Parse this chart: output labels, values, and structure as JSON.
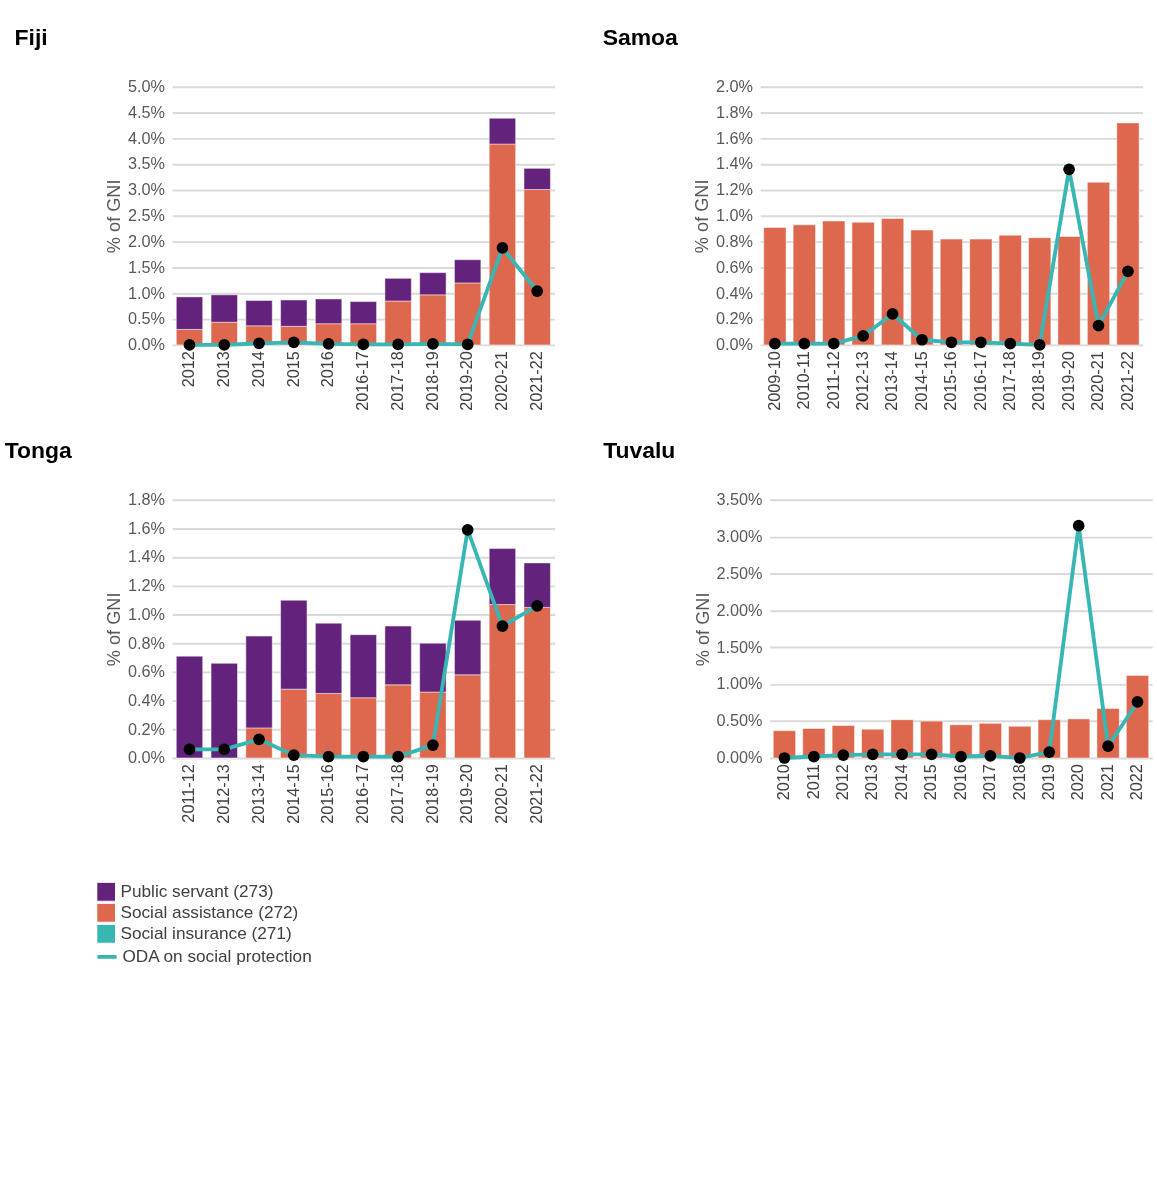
{
  "chart_data": [
    {
      "type": "bar",
      "title": "Fiji",
      "ylabel": "% of GNI",
      "stacked": true,
      "grid": "y",
      "legend": false,
      "categories": [
        "2012",
        "2013",
        "2014",
        "2015",
        "2016",
        "2016-17",
        "2017-18",
        "2018-19",
        "2019-20",
        "2020-21",
        "2021-22"
      ],
      "ylim": [
        0,
        5.0
      ],
      "yticks": [
        {
          "value": 0,
          "label": "0.0%"
        },
        {
          "value": 0.5,
          "label": "0.5%"
        },
        {
          "value": 1.0,
          "label": "1.0%"
        },
        {
          "value": 1.5,
          "label": "1.5%"
        },
        {
          "value": 2.0,
          "label": "2.0%"
        },
        {
          "value": 2.5,
          "label": "2.5%"
        },
        {
          "value": 3.0,
          "label": "3.0%"
        },
        {
          "value": 3.5,
          "label": "3.5%"
        },
        {
          "value": 4.0,
          "label": "4.0%"
        },
        {
          "value": 4.5,
          "label": "4.5%"
        },
        {
          "value": 5.0,
          "label": "5.0%"
        }
      ],
      "series": [
        {
          "color": "#dd684e",
          "values": [
            0.3,
            0.44,
            0.37,
            0.36,
            0.41,
            0.41,
            0.85,
            0.97,
            1.2,
            3.89,
            3.01
          ]
        },
        {
          "color": "#63237d",
          "values": [
            0.63,
            0.53,
            0.49,
            0.51,
            0.48,
            0.43,
            0.44,
            0.43,
            0.45,
            0.5,
            0.41
          ]
        },
        {
          "type": "line",
          "color": "#38b6b4",
          "marker": "circle",
          "values": [
            0.0,
            0.0,
            0.03,
            0.05,
            0.02,
            0.01,
            0.01,
            0.02,
            0.01,
            1.88,
            1.04
          ]
        }
      ]
    },
    {
      "type": "bar",
      "title": "Samoa",
      "ylabel": "% of GNI",
      "stacked": true,
      "grid": "y",
      "legend": false,
      "categories": [
        "2009-10",
        "2010-11",
        "2011-12",
        "2012-13",
        "2013-14",
        "2014-15",
        "2015-16",
        "2016-17",
        "2017-18",
        "2018-19",
        "2019-20",
        "2020-21",
        "2021-22"
      ],
      "ylim": [
        0,
        2.0
      ],
      "yticks": [
        {
          "value": 0,
          "label": "0.0%"
        },
        {
          "value": 0.2,
          "label": "0.2%"
        },
        {
          "value": 0.4,
          "label": "0.4%"
        },
        {
          "value": 0.6,
          "label": "0.6%"
        },
        {
          "value": 0.8,
          "label": "0.8%"
        },
        {
          "value": 1.0,
          "label": "1.0%"
        },
        {
          "value": 1.2,
          "label": "1.2%"
        },
        {
          "value": 1.4,
          "label": "1.4%"
        },
        {
          "value": 1.6,
          "label": "1.6%"
        },
        {
          "value": 1.8,
          "label": "1.8%"
        },
        {
          "value": 2.0,
          "label": "2.0%"
        }
      ],
      "series": [
        {
          "color": "#dd684e",
          "values": [
            0.91,
            0.93,
            0.96,
            0.95,
            0.98,
            0.89,
            0.82,
            0.82,
            0.85,
            0.83,
            0.84,
            1.26,
            1.72
          ]
        },
        {
          "type": "line",
          "color": "#38b6b4",
          "marker": "circle",
          "values": [
            0.01,
            0.01,
            0.01,
            0.07,
            0.24,
            0.04,
            0.02,
            0.02,
            0.01,
            0.0,
            1.36,
            0.15,
            0.57
          ]
        }
      ]
    },
    {
      "type": "bar",
      "title": "Tonga",
      "ylabel": "% of GNI",
      "stacked": true,
      "grid": "y",
      "legend": "bottom",
      "categories": [
        "2011-12",
        "2012-13",
        "2013-14",
        "2014-15",
        "2015-16",
        "2016-17",
        "2017-18",
        "2018-19",
        "2019-20",
        "2020-21",
        "2021-22"
      ],
      "ylim": [
        0,
        1.8
      ],
      "yticks": [
        {
          "value": 0,
          "label": "0.0%"
        },
        {
          "value": 0.2,
          "label": "0.2%"
        },
        {
          "value": 0.4,
          "label": "0.4%"
        },
        {
          "value": 0.6,
          "label": "0.6%"
        },
        {
          "value": 0.8,
          "label": "0.8%"
        },
        {
          "value": 1.0,
          "label": "1.0%"
        },
        {
          "value": 1.2,
          "label": "1.2%"
        },
        {
          "value": 1.4,
          "label": "1.4%"
        },
        {
          "value": 1.6,
          "label": "1.6%"
        },
        {
          "value": 1.8,
          "label": "1.8%"
        }
      ],
      "series": [
        {
          "name": "Social assistance (272)",
          "color": "#dd684e",
          "values": [
            0.0,
            0.0,
            0.21,
            0.48,
            0.45,
            0.42,
            0.51,
            0.46,
            0.58,
            1.07,
            1.05
          ]
        },
        {
          "name": "Public servant (273)",
          "color": "#63237d",
          "values": [
            0.71,
            0.66,
            0.64,
            0.62,
            0.49,
            0.44,
            0.41,
            0.34,
            0.38,
            0.39,
            0.31
          ]
        },
        {
          "name": "Social insurance (271)",
          "color": "#38b6b4",
          "values": [
            null,
            null,
            null,
            null,
            null,
            null,
            null,
            null,
            null,
            null,
            null
          ]
        },
        {
          "name": "ODA on social protection",
          "type": "line",
          "color": "#38b6b4",
          "marker": "circle",
          "values": [
            0.06,
            0.06,
            0.13,
            0.02,
            0.01,
            0.01,
            0.01,
            0.09,
            1.59,
            0.92,
            1.06
          ]
        }
      ]
    },
    {
      "type": "bar",
      "title": "Tuvalu",
      "ylabel": "% of GNI",
      "stacked": true,
      "grid": "y",
      "legend": false,
      "categories": [
        "2010",
        "2011",
        "2012",
        "2013",
        "2014",
        "2015",
        "2016",
        "2017",
        "2018",
        "2019",
        "2020",
        "2021",
        "2022"
      ],
      "ylim": [
        0,
        3.5
      ],
      "yticks": [
        {
          "value": 0,
          "label": "0.00%"
        },
        {
          "value": 0.5,
          "label": "0.50%"
        },
        {
          "value": 1.0,
          "label": "1.00%"
        },
        {
          "value": 1.5,
          "label": "1.50%"
        },
        {
          "value": 2.0,
          "label": "2.00%"
        },
        {
          "value": 2.5,
          "label": "2.50%"
        },
        {
          "value": 3.0,
          "label": "3.00%"
        },
        {
          "value": 3.5,
          "label": "3.50%"
        }
      ],
      "series": [
        {
          "color": "#dd684e",
          "values": [
            0.37,
            0.4,
            0.44,
            0.39,
            0.52,
            0.5,
            0.45,
            0.47,
            0.43,
            0.52,
            0.53,
            0.67,
            1.12
          ]
        },
        {
          "type": "line",
          "color": "#38b6b4",
          "marker": "circle",
          "values": [
            0.0,
            0.02,
            0.04,
            0.05,
            0.05,
            0.05,
            0.02,
            0.03,
            0.0,
            0.08,
            3.15,
            0.16,
            0.76
          ]
        }
      ]
    }
  ]
}
